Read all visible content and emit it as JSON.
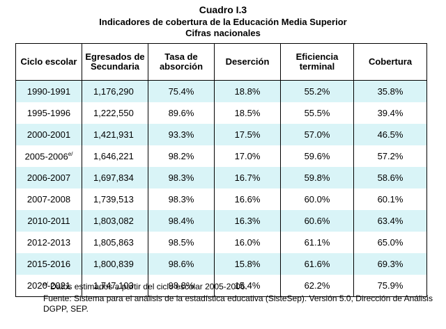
{
  "caption": {
    "label": "Cuadro I.3",
    "title": "Indicadores de cobertura de la Educación Media Superior",
    "subtitle": "Cifras nacionales"
  },
  "table": {
    "headers": [
      "Ciclo escolar",
      "Egresados de Secundaria",
      "Tasa de absorción",
      "Deserción",
      "Eficiencia terminal",
      "Cobertura"
    ],
    "rows": [
      {
        "ciclo": "1990-1991",
        "sup": "",
        "egresados": "1,176,290",
        "absorcion": "75.4%",
        "desercion": "18.8%",
        "eficiencia": "55.2%",
        "cobertura": "35.8%"
      },
      {
        "ciclo": "1995-1996",
        "sup": "",
        "egresados": "1,222,550",
        "absorcion": "89.6%",
        "desercion": "18.5%",
        "eficiencia": "55.5%",
        "cobertura": "39.4%"
      },
      {
        "ciclo": "2000-2001",
        "sup": "",
        "egresados": "1,421,931",
        "absorcion": "93.3%",
        "desercion": "17.5%",
        "eficiencia": "57.0%",
        "cobertura": "46.5%"
      },
      {
        "ciclo": "2005-2006",
        "sup": "e/",
        "egresados": "1,646,221",
        "absorcion": "98.2%",
        "desercion": "17.0%",
        "eficiencia": "59.6%",
        "cobertura": "57.2%"
      },
      {
        "ciclo": "2006-2007",
        "sup": "",
        "egresados": "1,697,834",
        "absorcion": "98.3%",
        "desercion": "16.7%",
        "eficiencia": "59.8%",
        "cobertura": "58.6%"
      },
      {
        "ciclo": "2007-2008",
        "sup": "",
        "egresados": "1,739,513",
        "absorcion": "98.3%",
        "desercion": "16.6%",
        "eficiencia": "60.0%",
        "cobertura": "60.1%"
      },
      {
        "ciclo": "2010-2011",
        "sup": "",
        "egresados": "1,803,082",
        "absorcion": "98.4%",
        "desercion": "16.3%",
        "eficiencia": "60.6%",
        "cobertura": "63.4%"
      },
      {
        "ciclo": "2012-2013",
        "sup": "",
        "egresados": "1,805,863",
        "absorcion": "98.5%",
        "desercion": "16.0%",
        "eficiencia": "61.1%",
        "cobertura": "65.0%"
      },
      {
        "ciclo": "2015-2016",
        "sup": "",
        "egresados": "1,800,839",
        "absorcion": "98.6%",
        "desercion": "15.8%",
        "eficiencia": "61.6%",
        "cobertura": "69.3%"
      },
      {
        "ciclo": "2020-2021",
        "sup": "",
        "egresados": "1,747,103",
        "absorcion": "98.8%",
        "desercion": "15.4%",
        "eficiencia": "62.2%",
        "cobertura": "75.9%"
      }
    ]
  },
  "footnotes": {
    "note_mark": "e/",
    "note_text": "Datos estimados a partir del ciclo escolar 2005-2006.",
    "source": "Fuente: Sistema para el análisis de la estadística educativa (SisteSep). Versión 5.0, Dirección de Análisis DGPP, SEP."
  },
  "colors": {
    "row_highlight": "#d9f4f7",
    "rule": "#000000"
  }
}
